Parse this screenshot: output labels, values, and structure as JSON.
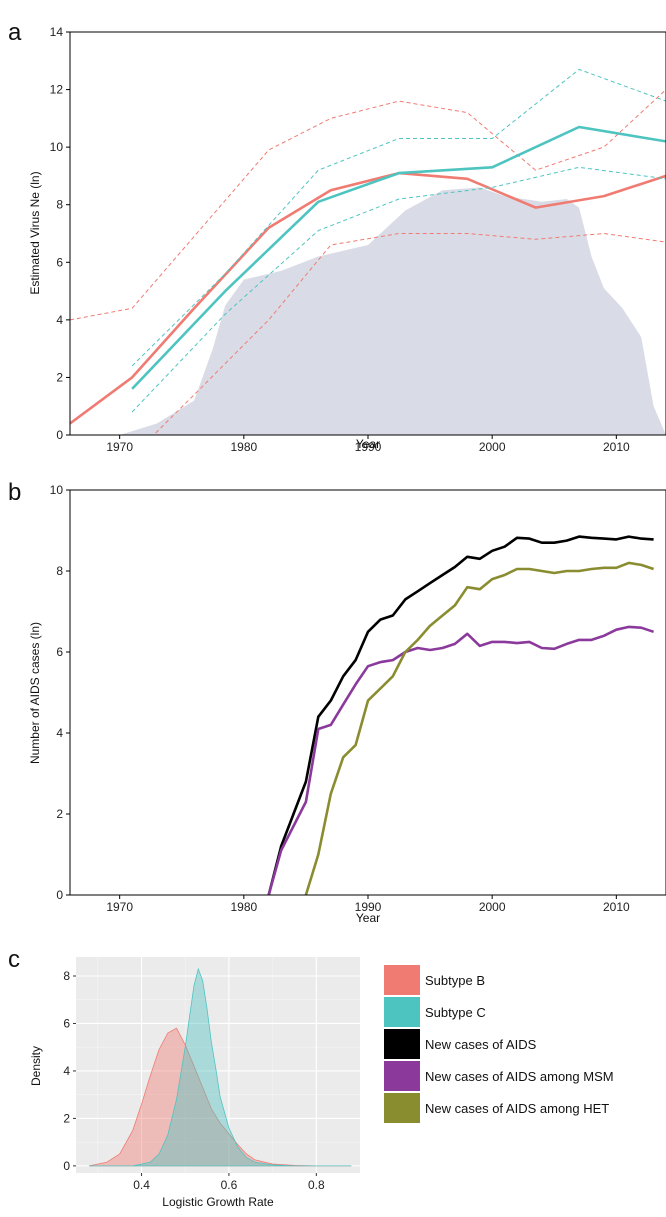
{
  "panels": {
    "a": "a",
    "b": "b",
    "c": "c"
  },
  "legend": {
    "items": [
      {
        "label": "Subtype B",
        "color": "#f07b72"
      },
      {
        "label": "Subtype C",
        "color": "#4ec4c1"
      },
      {
        "label": "New cases of AIDS",
        "color": "#000000"
      },
      {
        "label": "New cases of AIDS among MSM",
        "color": "#8b3a9c"
      },
      {
        "label": "New cases of AIDS among HET",
        "color": "#8a8c30"
      }
    ]
  },
  "chart_data": [
    {
      "type": "line",
      "panel": "a",
      "xlabel": "Year",
      "ylabel": "Estimated Virus Ne (ln)",
      "xlim": [
        1966,
        2014
      ],
      "ylim": [
        0,
        14
      ],
      "xticks": [
        1970,
        1980,
        1990,
        2000,
        2010
      ],
      "yticks": [
        0,
        2,
        4,
        6,
        8,
        10,
        12,
        14
      ],
      "background_area": {
        "color": "#d9dce6",
        "points": [
          [
            1966,
            0
          ],
          [
            1970,
            0
          ],
          [
            1973,
            0.4
          ],
          [
            1976,
            1.2
          ],
          [
            1977.5,
            3.0
          ],
          [
            1978.5,
            4.5
          ],
          [
            1980,
            5.4
          ],
          [
            1983,
            5.7
          ],
          [
            1986,
            6.2
          ],
          [
            1988,
            6.4
          ],
          [
            1990,
            6.6
          ],
          [
            1993,
            7.8
          ],
          [
            1996,
            8.5
          ],
          [
            1999,
            8.6
          ],
          [
            2001,
            8.3
          ],
          [
            2004,
            8.1
          ],
          [
            2006,
            8.2
          ],
          [
            2007,
            7.9
          ],
          [
            2008,
            6.2
          ],
          [
            2009,
            5.1
          ],
          [
            2010.5,
            4.4
          ],
          [
            2012,
            3.4
          ],
          [
            2013,
            1.0
          ],
          [
            2014,
            0
          ]
        ]
      },
      "series": [
        {
          "name": "Subtype B",
          "color": "#f07b72",
          "style": "solid",
          "x": [
            1966,
            1971,
            1976,
            1982,
            1987,
            1992.5,
            1998,
            2003.5,
            2009,
            2014
          ],
          "y": [
            0.4,
            2.0,
            4.4,
            7.2,
            8.5,
            9.1,
            8.9,
            7.9,
            8.3,
            9.0
          ]
        },
        {
          "name": "Subtype B upper",
          "color": "#f07b72",
          "style": "dashed",
          "x": [
            1966,
            1971,
            1976,
            1982,
            1987,
            1992.5,
            1998,
            2003.5,
            2009,
            2014
          ],
          "y": [
            4.0,
            4.4,
            6.9,
            9.9,
            11.0,
            11.6,
            11.2,
            9.2,
            10.0,
            12.0
          ]
        },
        {
          "name": "Subtype B lower",
          "color": "#f07b72",
          "style": "dashed",
          "x": [
            1972.5,
            1976,
            1982,
            1987,
            1992.5,
            1998,
            2003.5,
            2009,
            2014
          ],
          "y": [
            -0.1,
            1.4,
            4.0,
            6.6,
            7.0,
            7.0,
            6.8,
            7.0,
            6.7
          ]
        },
        {
          "name": "Subtype C",
          "color": "#4ec4c1",
          "style": "solid",
          "x": [
            1971,
            1978.5,
            1986,
            1992.5,
            2000,
            2007,
            2014
          ],
          "y": [
            1.6,
            5.0,
            8.1,
            9.1,
            9.3,
            10.7,
            10.2
          ]
        },
        {
          "name": "Subtype C upper",
          "color": "#4ec4c1",
          "style": "dashed",
          "x": [
            1971,
            1978.5,
            1986,
            1992.5,
            2000,
            2007,
            2014
          ],
          "y": [
            2.4,
            5.6,
            9.2,
            10.3,
            10.3,
            12.7,
            11.6
          ]
        },
        {
          "name": "Subtype C lower",
          "color": "#4ec4c1",
          "style": "dashed",
          "x": [
            1971,
            1978.5,
            1986,
            1992.5,
            2000,
            2007,
            2014
          ],
          "y": [
            0.8,
            4.2,
            7.1,
            8.2,
            8.6,
            9.3,
            8.9
          ]
        }
      ]
    },
    {
      "type": "line",
      "panel": "b",
      "xlabel": "Year",
      "ylabel": "Number of AIDS cases (ln)",
      "xlim": [
        1966,
        2014
      ],
      "ylim": [
        0,
        10
      ],
      "xticks": [
        1970,
        1980,
        1990,
        2000,
        2010
      ],
      "yticks": [
        0,
        2,
        4,
        6,
        8,
        10
      ],
      "series": [
        {
          "name": "New cases of AIDS",
          "color": "#000000",
          "x": [
            1982,
            1983,
            1984,
            1985,
            1986,
            1987,
            1988,
            1989,
            1990,
            1991,
            1992,
            1993,
            1994,
            1995,
            1996,
            1997,
            1998,
            1999,
            2000,
            2001,
            2002,
            2003,
            2004,
            2005,
            2006,
            2007,
            2008,
            2009,
            2010,
            2011,
            2012,
            2013
          ],
          "y": [
            0,
            1.2,
            2,
            2.8,
            4.4,
            4.8,
            5.4,
            5.8,
            6.5,
            6.8,
            6.9,
            7.3,
            7.5,
            7.7,
            7.9,
            8.1,
            8.35,
            8.3,
            8.5,
            8.6,
            8.82,
            8.8,
            8.7,
            8.7,
            8.75,
            8.85,
            8.82,
            8.8,
            8.78,
            8.85,
            8.8,
            8.78
          ]
        },
        {
          "name": "New cases of AIDS among MSM",
          "color": "#8b3a9c",
          "x": [
            1982,
            1983,
            1984,
            1985,
            1986,
            1987,
            1988,
            1989,
            1990,
            1991,
            1992,
            1993,
            1994,
            1995,
            1996,
            1997,
            1998,
            1999,
            2000,
            2001,
            2002,
            2003,
            2004,
            2005,
            2006,
            2007,
            2008,
            2009,
            2010,
            2011,
            2012,
            2013
          ],
          "y": [
            0,
            1.1,
            1.7,
            2.3,
            4.1,
            4.2,
            4.7,
            5.2,
            5.65,
            5.75,
            5.8,
            6.0,
            6.1,
            6.05,
            6.1,
            6.2,
            6.45,
            6.15,
            6.25,
            6.25,
            6.22,
            6.25,
            6.1,
            6.08,
            6.2,
            6.3,
            6.3,
            6.4,
            6.55,
            6.62,
            6.6,
            6.5
          ]
        },
        {
          "name": "New cases of AIDS among HET",
          "color": "#8a8c30",
          "x": [
            1985,
            1986,
            1987,
            1988,
            1989,
            1990,
            1991,
            1992,
            1993,
            1994,
            1995,
            1996,
            1997,
            1998,
            1999,
            2000,
            2001,
            2002,
            2003,
            2004,
            2005,
            2006,
            2007,
            2008,
            2009,
            2010,
            2011,
            2012,
            2013
          ],
          "y": [
            0,
            1.0,
            2.5,
            3.4,
            3.7,
            4.8,
            5.1,
            5.4,
            6.0,
            6.3,
            6.65,
            6.9,
            7.15,
            7.6,
            7.55,
            7.8,
            7.9,
            8.05,
            8.05,
            8.0,
            7.95,
            8.0,
            8.0,
            8.05,
            8.08,
            8.08,
            8.2,
            8.15,
            8.05
          ]
        }
      ]
    },
    {
      "type": "area",
      "panel": "c",
      "xlabel": "Logistic Growth Rate",
      "ylabel": "Density",
      "xlim": [
        0.25,
        0.9
      ],
      "ylim": [
        -0.3,
        8.8
      ],
      "xticks": [
        0.4,
        0.6,
        0.8
      ],
      "yticks": [
        0,
        2,
        4,
        6,
        8
      ],
      "grid": true,
      "series": [
        {
          "name": "Subtype B",
          "color": "#f07b72",
          "x": [
            0.28,
            0.32,
            0.35,
            0.38,
            0.4,
            0.42,
            0.44,
            0.46,
            0.48,
            0.5,
            0.52,
            0.54,
            0.56,
            0.58,
            0.6,
            0.62,
            0.64,
            0.66,
            0.7,
            0.75,
            0.8,
            0.88
          ],
          "y": [
            0,
            0.15,
            0.5,
            1.5,
            2.6,
            3.8,
            4.9,
            5.6,
            5.8,
            5.1,
            4.2,
            3.3,
            2.4,
            1.8,
            1.35,
            0.9,
            0.5,
            0.25,
            0.08,
            0.02,
            0,
            0
          ]
        },
        {
          "name": "Subtype C",
          "color": "#4ec4c1",
          "x": [
            0.28,
            0.38,
            0.42,
            0.44,
            0.46,
            0.48,
            0.5,
            0.51,
            0.52,
            0.53,
            0.54,
            0.55,
            0.56,
            0.57,
            0.58,
            0.6,
            0.62,
            0.64,
            0.66,
            0.7,
            0.75,
            0.88
          ],
          "y": [
            0,
            0,
            0.15,
            0.5,
            1.3,
            2.8,
            5.0,
            6.3,
            7.6,
            8.3,
            7.8,
            6.6,
            5.2,
            4.1,
            2.9,
            1.6,
            0.8,
            0.35,
            0.15,
            0.04,
            0,
            0
          ]
        }
      ]
    }
  ]
}
